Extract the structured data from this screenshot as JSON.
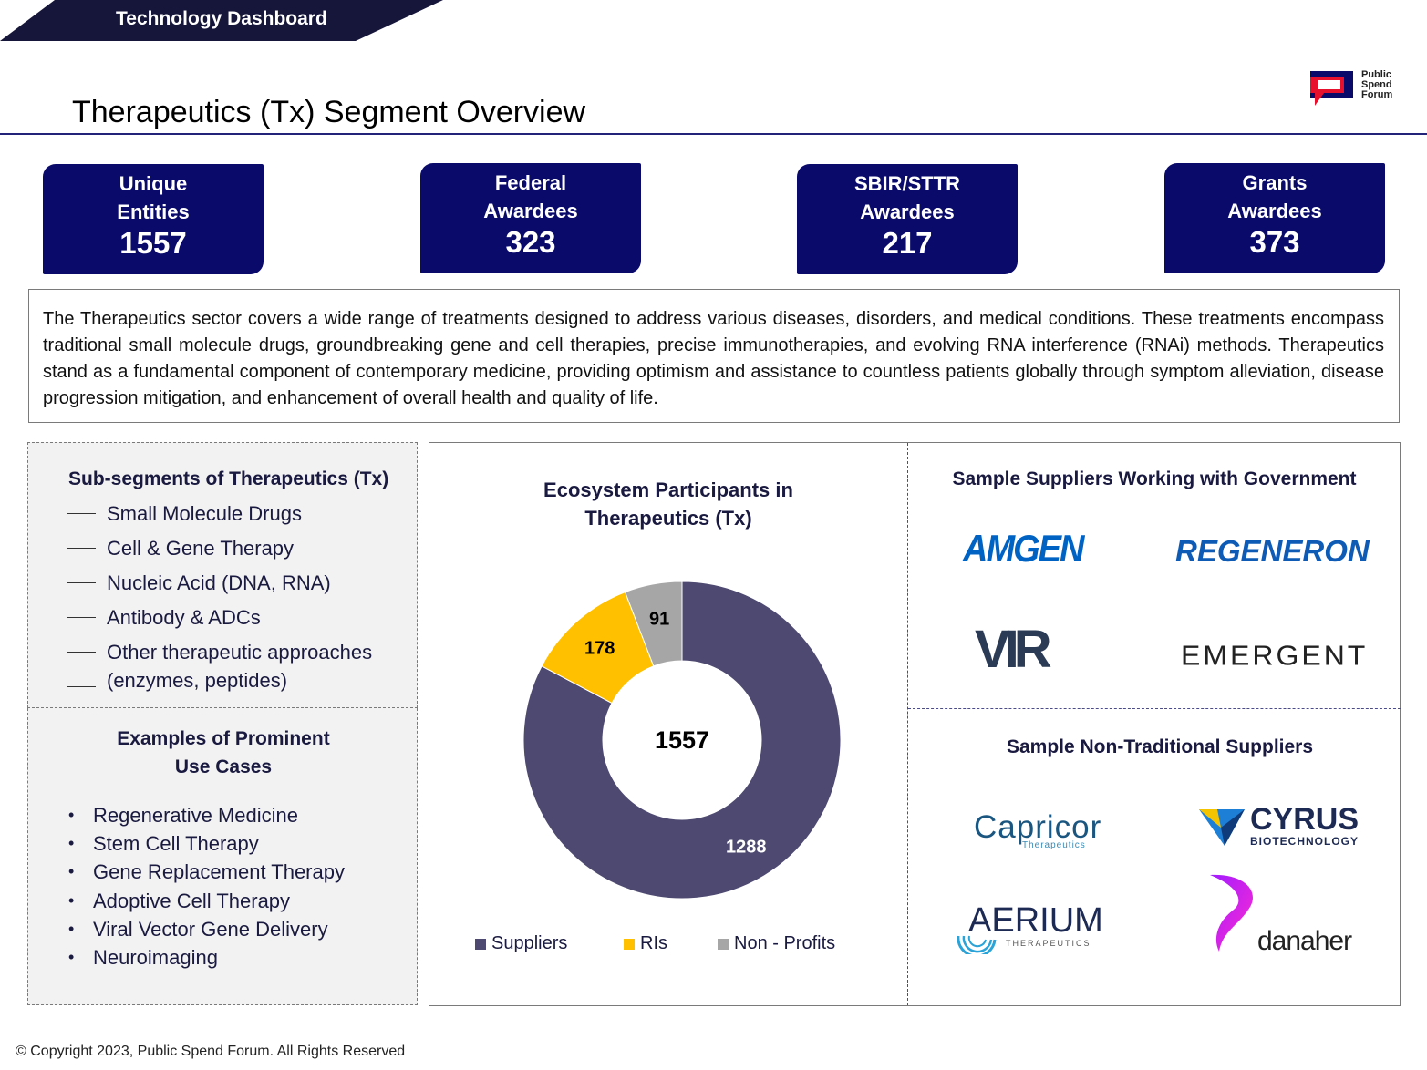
{
  "header": {
    "banner": "Technology Dashboard",
    "title": "Therapeutics (Tx) Segment Overview",
    "logo_text": [
      "Public",
      "Spend",
      "Forum"
    ]
  },
  "kpis": [
    {
      "label": "Unique\nEntities",
      "value": "1557"
    },
    {
      "label": "Federal\nAwardees",
      "value": "323"
    },
    {
      "label": "SBIR/STTR\nAwardees",
      "value": "217"
    },
    {
      "label": "Grants\nAwardees",
      "value": "373"
    }
  ],
  "description": "The Therapeutics sector covers a wide range of treatments designed to address various diseases, disorders, and medical conditions. These treatments encompass traditional small molecule drugs, groundbreaking gene and cell therapies, precise immunotherapies, and evolving RNA interference (RNAi) methods. Therapeutics stand as a fundamental component of contemporary medicine, providing optimism and assistance to countless patients globally through symptom alleviation, disease progression mitigation, and enhancement of overall health and quality of life.",
  "subsegments": {
    "title": "Sub-segments of Therapeutics (Tx)",
    "items": [
      "Small Molecule Drugs",
      "Cell & Gene Therapy",
      "Nucleic Acid (DNA, RNA)",
      "Antibody & ADCs",
      "Other therapeutic approaches",
      "(enzymes, peptides)"
    ]
  },
  "use_cases": {
    "title": "Examples of Prominent\nUse Cases",
    "items": [
      "Regenerative Medicine",
      "Stem Cell Therapy",
      "Gene Replacement Therapy",
      "Adoptive Cell Therapy",
      "Viral Vector Gene Delivery",
      "Neuroimaging"
    ]
  },
  "chart_data": {
    "type": "pie",
    "title": "Ecosystem Participants in\nTherapeutics (Tx)",
    "center_label": "1557",
    "categories": [
      "Suppliers",
      "RIs",
      "Non - Profits"
    ],
    "values": [
      1288,
      178,
      91
    ],
    "colors": [
      "#4d4970",
      "#ffc000",
      "#a6a6a6"
    ],
    "label_colors": [
      "#ffffff",
      "#000000",
      "#000000"
    ],
    "legend_position": "bottom",
    "donut": true
  },
  "suppliers": {
    "title": "Sample Suppliers Working with Government",
    "brands": [
      "AMGEN",
      "REGENERON",
      "VIR",
      "EMERGENT"
    ]
  },
  "non_traditional": {
    "title": "Sample Non-Traditional Suppliers",
    "brands": [
      "Capricor",
      "Therapeutics",
      "CYRUS",
      "BIOTECHNOLOGY",
      "AERIUM",
      "THERAPEUTICS",
      "danaher"
    ]
  },
  "footer": "© Copyright 2023, Public Spend Forum. All Rights Reserved"
}
